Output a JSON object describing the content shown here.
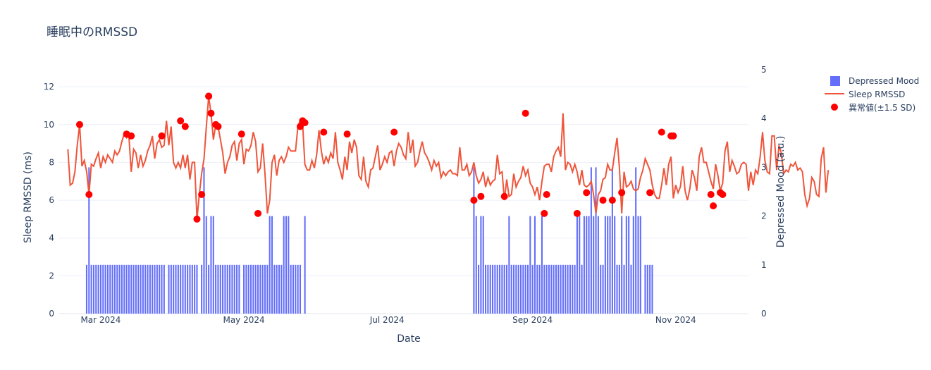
{
  "chart_data": {
    "type": "bar+line+scatter",
    "title": "睡眠中のRMSSD",
    "xlabel": "Date",
    "ylabel_left": "Sleep RMSSD (ms)",
    "ylabel_right": "Depressed Mood (a.u.)",
    "x_range": [
      "2024-02-12",
      "2024-12-02"
    ],
    "ylim_left": [
      0,
      12.9
    ],
    "ylim_right": [
      0,
      5.0
    ],
    "yticks_left": [
      0,
      2,
      4,
      6,
      8,
      10,
      12
    ],
    "yticks_right": [
      0,
      1,
      2,
      3,
      4,
      5
    ],
    "xticks": [
      {
        "date": "2024-03-01",
        "label": "Mar 2024"
      },
      {
        "date": "2024-05-01",
        "label": "May 2024"
      },
      {
        "date": "2024-07-01",
        "label": "Jul 2024"
      },
      {
        "date": "2024-09-01",
        "label": "Sep 2024"
      },
      {
        "date": "2024-11-01",
        "label": "Nov 2024"
      }
    ],
    "grid": true,
    "legend_position": "top-right",
    "colors": {
      "bar": "#636efa",
      "line": "#ef553b",
      "marker": "#ff0000",
      "grid": "#ebf0f8"
    },
    "series": [
      {
        "name": "Depressed Mood",
        "type": "bar",
        "axis": "right",
        "segments": [
          {
            "start": "2024-02-24",
            "values": [
              1,
              3,
              1,
              1,
              1,
              1,
              1,
              1,
              1,
              1,
              1,
              1,
              1,
              1,
              1,
              1,
              1,
              1,
              1,
              1,
              1,
              1,
              1,
              1,
              1,
              1,
              1,
              1,
              1,
              1,
              1,
              1,
              1,
              1,
              0,
              1,
              1,
              1,
              1,
              1,
              1,
              1,
              1,
              1,
              1,
              1,
              1,
              1,
              0,
              1,
              3,
              2,
              1,
              2,
              2,
              1,
              1,
              1,
              1,
              1,
              1,
              1,
              1,
              1,
              1,
              1,
              0,
              1,
              1,
              1,
              1,
              1,
              1,
              1,
              1,
              1,
              1,
              1,
              2,
              2,
              1,
              1,
              1,
              1,
              2,
              2,
              2,
              1,
              1,
              1,
              1,
              1,
              0,
              2
            ]
          },
          {
            "start": "2024-08-07",
            "values": [
              3,
              2,
              1,
              2,
              2,
              1,
              1,
              1,
              1,
              1,
              1,
              1,
              1,
              1,
              1,
              2,
              1,
              1,
              1,
              1,
              1,
              1,
              1,
              1,
              2,
              1,
              2,
              1,
              1,
              2,
              1,
              1,
              1,
              1,
              1,
              1,
              1,
              1,
              1,
              1,
              1,
              1,
              1,
              1,
              2,
              2,
              1,
              2,
              2,
              2,
              3,
              2,
              3,
              2,
              1,
              1,
              2,
              2,
              2,
              3,
              2,
              1,
              1,
              2,
              1,
              2,
              2,
              1,
              2,
              3,
              2,
              2,
              0,
              1,
              1,
              1,
              1
            ]
          }
        ]
      },
      {
        "name": "Sleep RMSSD",
        "type": "line",
        "axis": "left",
        "start": "2024-02-16",
        "values": [
          8.7,
          6.8,
          6.9,
          7.5,
          8.9,
          10.0,
          7.8,
          8.1,
          7.5,
          6.3,
          7.9,
          7.8,
          8.2,
          8.5,
          7.7,
          8.3,
          8.0,
          8.4,
          8.2,
          8.0,
          8.6,
          8.4,
          8.6,
          9.1,
          9.5,
          9.3,
          9.4,
          7.5,
          8.7,
          8.5,
          7.7,
          8.4,
          7.8,
          8.1,
          8.6,
          8.9,
          9.4,
          8.2,
          9.0,
          9.2,
          8.8,
          8.9,
          10.2,
          8.9,
          9.9,
          8.0,
          7.7,
          8.0,
          7.7,
          8.4,
          7.7,
          8.4,
          7.1,
          8.0,
          8.0,
          5.0,
          6.3,
          7.4,
          8.2,
          9.9,
          11.5,
          10.6,
          9.2,
          10.0,
          9.9,
          9.2,
          8.5,
          7.4,
          8.0,
          8.3,
          8.9,
          9.1,
          8.1,
          9.0,
          9.2,
          7.9,
          8.7,
          8.6,
          8.9,
          9.6,
          9.1,
          7.5,
          7.7,
          9.0,
          7.4,
          5.3,
          6.0,
          8.0,
          8.4,
          7.3,
          8.1,
          8.3,
          8.0,
          8.3,
          8.8,
          8.6,
          8.6,
          8.6,
          9.9,
          10.2,
          10.1,
          7.9,
          7.6,
          7.6,
          8.1,
          7.7,
          8.4,
          9.7,
          8.6,
          7.9,
          8.3,
          8.0,
          8.5,
          8.2,
          9.6,
          8.0,
          7.6,
          7.1,
          8.3,
          7.6,
          9.1,
          8.5,
          9.2,
          8.8,
          7.3,
          7.1,
          8.3,
          7.0,
          6.7,
          7.6,
          7.7,
          8.3,
          8.9,
          7.6,
          7.9,
          8.3,
          8.0,
          8.5,
          8.6,
          7.8,
          8.6,
          9.0,
          8.8,
          8.4,
          8.2,
          9.6,
          8.5,
          9.2,
          7.8,
          8.0,
          8.6,
          9.1,
          8.5,
          8.3,
          8.0,
          7.6,
          8.1,
          7.8,
          8.0,
          7.2,
          7.5,
          7.3,
          7.5,
          7.6,
          7.4,
          7.4,
          7.3,
          8.8,
          7.6,
          7.6,
          7.9,
          7.3,
          7.5,
          8.0,
          7.3,
          6.9,
          7.1,
          7.5,
          6.7,
          7.2,
          6.8,
          7.0,
          7.1,
          8.4,
          7.4,
          7.5,
          6.0,
          7.1,
          6.2,
          6.3,
          7.4,
          6.7,
          7.0,
          7.2,
          7.8,
          7.3,
          7.6,
          6.9,
          6.7,
          6.3,
          6.7,
          6.0,
          7.0,
          7.8,
          7.9,
          7.9,
          7.5,
          8.3,
          8.6,
          8.8,
          8.3,
          10.6,
          7.6,
          8.0,
          7.9,
          7.5,
          7.9,
          7.5,
          6.8,
          7.6,
          6.8,
          6.7,
          6.8,
          7.0,
          6.3,
          5.3,
          6.3,
          6.5,
          7.1,
          7.2,
          7.9,
          7.6,
          7.6,
          8.5,
          9.3,
          7.7,
          5.3,
          7.5,
          6.7,
          6.8,
          7.0,
          6.6,
          6.5,
          6.6,
          7.2,
          7.6,
          8.2,
          7.9,
          7.6,
          6.8,
          6.3,
          6.1,
          6.1,
          6.8,
          7.7,
          6.8,
          7.9,
          8.3,
          6.1,
          6.8,
          6.4,
          6.7,
          7.8,
          6.5,
          6.0,
          6.6,
          7.6,
          7.2,
          6.5,
          8.3,
          8.8,
          8.0,
          8.0,
          7.5,
          7.0,
          6.6,
          7.9,
          7.3,
          6.5,
          6.9,
          8.6,
          9.1,
          7.5,
          8.1,
          7.8,
          7.4,
          7.5,
          7.9,
          8.0,
          7.9,
          6.5,
          7.5,
          6.8,
          7.6,
          7.4,
          8.3,
          9.6,
          8.1,
          7.5,
          7.4,
          9.4,
          9.4,
          7.6,
          8.9,
          8.5,
          7.4,
          7.6,
          7.5,
          7.9,
          7.8,
          8.0,
          7.6,
          7.7,
          7.5,
          6.3,
          5.7,
          6.1,
          7.2,
          7.0,
          6.3,
          6.2,
          8.2,
          8.8,
          6.4,
          7.6
        ]
      },
      {
        "name": "異常値(±1.5 SD)",
        "type": "scatter",
        "axis": "left",
        "points": [
          {
            "x": "2024-02-21",
            "y": 10.0
          },
          {
            "x": "2024-02-25",
            "y": 6.3
          },
          {
            "x": "2024-03-12",
            "y": 9.5
          },
          {
            "x": "2024-03-14",
            "y": 9.4
          },
          {
            "x": "2024-03-27",
            "y": 9.4
          },
          {
            "x": "2024-04-04",
            "y": 10.2
          },
          {
            "x": "2024-04-06",
            "y": 9.9
          },
          {
            "x": "2024-04-11",
            "y": 5.0
          },
          {
            "x": "2024-04-13",
            "y": 6.3
          },
          {
            "x": "2024-04-16",
            "y": 11.5
          },
          {
            "x": "2024-04-17",
            "y": 10.6
          },
          {
            "x": "2024-04-19",
            "y": 10.0
          },
          {
            "x": "2024-04-20",
            "y": 9.9
          },
          {
            "x": "2024-04-16",
            "y": 11.5
          },
          {
            "x": "2024-04-30",
            "y": 9.5
          },
          {
            "x": "2024-05-07",
            "y": 5.3
          },
          {
            "x": "2024-05-25",
            "y": 9.9
          },
          {
            "x": "2024-05-26",
            "y": 10.2
          },
          {
            "x": "2024-05-27",
            "y": 10.1
          },
          {
            "x": "2024-06-04",
            "y": 9.6
          },
          {
            "x": "2024-06-14",
            "y": 9.5
          },
          {
            "x": "2024-07-04",
            "y": 9.6
          },
          {
            "x": "2024-08-07",
            "y": 6.0
          },
          {
            "x": "2024-08-10",
            "y": 6.2
          },
          {
            "x": "2024-08-20",
            "y": 6.2
          },
          {
            "x": "2024-08-29",
            "y": 10.6
          },
          {
            "x": "2024-09-06",
            "y": 5.3
          },
          {
            "x": "2024-09-07",
            "y": 6.3
          },
          {
            "x": "2024-09-20",
            "y": 5.3
          },
          {
            "x": "2024-09-24",
            "y": 6.4
          },
          {
            "x": "2024-10-01",
            "y": 6.0
          },
          {
            "x": "2024-10-05",
            "y": 6.0
          },
          {
            "x": "2024-10-09",
            "y": 6.4
          },
          {
            "x": "2024-10-21",
            "y": 6.4
          },
          {
            "x": "2024-10-26",
            "y": 9.6
          },
          {
            "x": "2024-10-30",
            "y": 9.4
          },
          {
            "x": "2024-10-31",
            "y": 9.4
          },
          {
            "x": "2024-11-16",
            "y": 6.3
          },
          {
            "x": "2024-11-17",
            "y": 5.7
          },
          {
            "x": "2024-11-20",
            "y": 6.4
          },
          {
            "x": "2024-11-21",
            "y": 6.3
          }
        ]
      }
    ]
  }
}
